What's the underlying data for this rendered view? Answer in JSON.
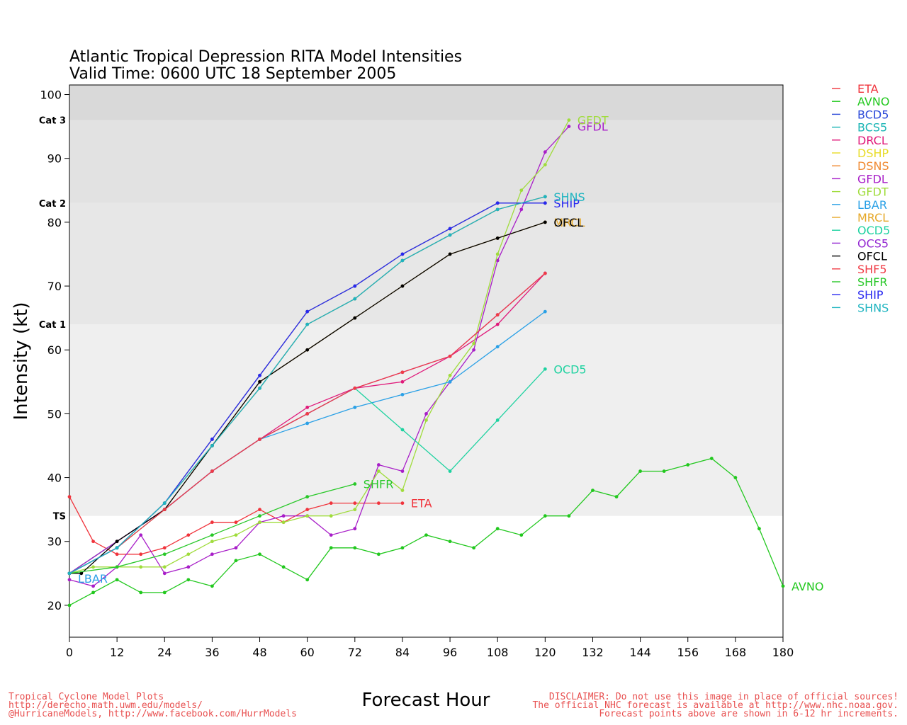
{
  "title_line1": "Atlantic Tropical Depression RITA Model Intensities",
  "title_line2": "Valid Time: 0600 UTC 18 September 2005",
  "footer": {
    "left": [
      "Tropical Cyclone Model Plots",
      "http://derecho.math.uwm.edu/models/",
      "@HurricaneModels, http://www.facebook.com/HurrModels"
    ],
    "right": [
      "DISCLAIMER: Do not use this image in place of official sources!",
      "The official NHC forecast is available at http://www.nhc.noaa.gov.",
      "Forecast points above are shown in 6-12 hr increments."
    ]
  },
  "chart_data": {
    "type": "line",
    "xlabel": "Forecast Hour",
    "ylabel": "Intensity (kt)",
    "xlim": [
      0,
      180
    ],
    "ylim": [
      15,
      101.5
    ],
    "xticks": [
      0,
      12,
      24,
      36,
      48,
      60,
      72,
      84,
      96,
      108,
      120,
      132,
      144,
      156,
      168,
      180
    ],
    "yticks": [
      20,
      30,
      40,
      50,
      60,
      70,
      80,
      90,
      100
    ],
    "categories": [
      {
        "label": "TS",
        "value": 34,
        "color": "#efefef"
      },
      {
        "label": "Cat 1",
        "value": 64,
        "color": "#e7e7e7"
      },
      {
        "label": "Cat 2",
        "value": 83,
        "color": "#e2e2e2"
      },
      {
        "label": "Cat 3",
        "value": 96,
        "color": "#d9d9d9"
      }
    ],
    "legend_position": "right",
    "series": [
      {
        "name": "ETA",
        "color": "#f0343c",
        "end_label": "ETA",
        "points": [
          [
            0,
            37
          ],
          [
            6,
            30
          ],
          [
            12,
            28
          ],
          [
            18,
            28
          ],
          [
            24,
            29
          ],
          [
            30,
            31
          ],
          [
            36,
            33
          ],
          [
            42,
            33
          ],
          [
            48,
            35
          ],
          [
            54,
            33
          ],
          [
            60,
            35
          ],
          [
            66,
            36
          ],
          [
            72,
            36
          ],
          [
            78,
            36
          ],
          [
            84,
            36
          ]
        ]
      },
      {
        "name": "AVNO",
        "color": "#22c81e",
        "end_label": "AVNO",
        "points": [
          [
            0,
            20
          ],
          [
            6,
            22
          ],
          [
            12,
            24
          ],
          [
            18,
            22
          ],
          [
            24,
            22
          ],
          [
            30,
            24
          ],
          [
            36,
            23
          ],
          [
            42,
            27
          ],
          [
            48,
            28
          ],
          [
            54,
            26
          ],
          [
            60,
            24
          ],
          [
            66,
            29
          ],
          [
            72,
            29
          ],
          [
            78,
            28
          ],
          [
            84,
            29
          ],
          [
            90,
            31
          ],
          [
            96,
            30
          ],
          [
            102,
            29
          ],
          [
            108,
            32
          ],
          [
            114,
            31
          ],
          [
            120,
            34
          ],
          [
            126,
            34
          ],
          [
            132,
            38
          ],
          [
            138,
            37
          ],
          [
            144,
            41
          ],
          [
            150,
            41
          ],
          [
            156,
            42
          ],
          [
            162,
            43
          ],
          [
            168,
            40
          ],
          [
            174,
            32
          ],
          [
            180,
            23
          ]
        ]
      },
      {
        "name": "BCD5",
        "color": "#2a48d8",
        "end_label": "",
        "points": [
          [
            0,
            25
          ],
          [
            12,
            29
          ],
          [
            24,
            36
          ],
          [
            36,
            46
          ],
          [
            48,
            56
          ],
          [
            60,
            66
          ],
          [
            72,
            70
          ],
          [
            84,
            75
          ],
          [
            96,
            79
          ],
          [
            108,
            83
          ],
          [
            120,
            83
          ]
        ]
      },
      {
        "name": "BCS5",
        "color": "#18b4b4",
        "end_label": "",
        "points": [
          [
            0,
            25
          ],
          [
            12,
            29
          ],
          [
            24,
            36
          ],
          [
            36,
            45
          ],
          [
            48,
            54
          ],
          [
            60,
            64
          ],
          [
            72,
            68
          ],
          [
            84,
            74
          ],
          [
            96,
            78
          ],
          [
            108,
            82
          ],
          [
            120,
            84
          ]
        ]
      },
      {
        "name": "DRCL",
        "color": "#e0197a",
        "end_label": "",
        "points": [
          [
            0,
            25
          ],
          [
            12,
            30
          ],
          [
            24,
            35
          ],
          [
            36,
            41
          ],
          [
            48,
            46
          ],
          [
            60,
            51
          ],
          [
            72,
            54
          ],
          [
            84,
            55
          ],
          [
            96,
            59
          ],
          [
            108,
            64
          ],
          [
            120,
            72
          ]
        ]
      },
      {
        "name": "DSHP",
        "color": "#e8dc28",
        "end_label": "",
        "points": [
          [
            0,
            25
          ],
          [
            12,
            29
          ],
          [
            24,
            36
          ],
          [
            36,
            46
          ],
          [
            48,
            56
          ],
          [
            60,
            66
          ],
          [
            72,
            70
          ],
          [
            84,
            75
          ],
          [
            96,
            79
          ],
          [
            108,
            83
          ],
          [
            120,
            83
          ]
        ]
      },
      {
        "name": "DSNS",
        "color": "#f08a32",
        "end_label": "",
        "points": [
          [
            0,
            25
          ],
          [
            12,
            29
          ],
          [
            24,
            36
          ],
          [
            36,
            45
          ],
          [
            48,
            54
          ],
          [
            60,
            64
          ],
          [
            72,
            68
          ],
          [
            84,
            74
          ],
          [
            96,
            78
          ],
          [
            108,
            82
          ],
          [
            120,
            84
          ]
        ]
      },
      {
        "name": "GFDL",
        "color": "#a81ec8",
        "end_label": "GFDL",
        "points": [
          [
            0,
            24
          ],
          [
            6,
            23
          ],
          [
            12,
            26
          ],
          [
            18,
            31
          ],
          [
            24,
            25
          ],
          [
            30,
            26
          ],
          [
            36,
            28
          ],
          [
            42,
            29
          ],
          [
            48,
            33
          ],
          [
            54,
            34
          ],
          [
            60,
            34
          ],
          [
            66,
            31
          ],
          [
            72,
            32
          ],
          [
            78,
            42
          ],
          [
            84,
            41
          ],
          [
            90,
            50
          ],
          [
            96,
            55
          ],
          [
            102,
            60
          ],
          [
            108,
            74
          ],
          [
            114,
            82
          ],
          [
            120,
            91
          ],
          [
            126,
            95
          ]
        ]
      },
      {
        "name": "GFDT",
        "color": "#a0dc3c",
        "end_label": "GFDT",
        "points": [
          [
            0,
            25
          ],
          [
            6,
            26
          ],
          [
            12,
            26
          ],
          [
            18,
            26
          ],
          [
            24,
            26
          ],
          [
            30,
            28
          ],
          [
            36,
            30
          ],
          [
            42,
            31
          ],
          [
            48,
            33
          ],
          [
            54,
            33
          ],
          [
            60,
            34
          ],
          [
            66,
            34
          ],
          [
            72,
            35
          ],
          [
            78,
            41
          ],
          [
            84,
            38
          ],
          [
            90,
            49
          ],
          [
            96,
            56
          ],
          [
            102,
            61
          ],
          [
            108,
            75
          ],
          [
            114,
            85
          ],
          [
            120,
            89
          ],
          [
            126,
            96
          ]
        ]
      },
      {
        "name": "LBAR",
        "color": "#2aa0e6",
        "end_label": "LBAR",
        "points": [
          [
            0,
            25
          ],
          [
            12,
            30
          ],
          [
            24,
            35
          ],
          [
            36,
            41
          ],
          [
            48,
            46
          ],
          [
            60,
            48.5
          ],
          [
            72,
            51
          ],
          [
            84,
            53
          ],
          [
            96,
            55
          ],
          [
            108,
            60.5
          ],
          [
            120,
            66
          ]
        ]
      },
      {
        "name": "MRCL",
        "color": "#e6a828",
        "end_label": "MRCL",
        "points": [
          [
            0,
            25
          ],
          [
            12,
            30
          ],
          [
            24,
            35
          ],
          [
            36,
            45
          ],
          [
            48,
            55
          ],
          [
            60,
            60
          ],
          [
            72,
            65
          ],
          [
            84,
            70
          ],
          [
            96,
            75
          ],
          [
            108,
            77.5
          ],
          [
            120,
            80
          ]
        ]
      },
      {
        "name": "OCD5",
        "color": "#1ed2a0",
        "end_label": "OCD5",
        "points": [
          [
            0,
            25
          ],
          [
            12,
            29
          ],
          [
            24,
            35
          ],
          [
            36,
            41
          ],
          [
            48,
            46
          ],
          [
            60,
            50
          ],
          [
            72,
            54
          ],
          [
            84,
            47.5
          ],
          [
            96,
            41
          ],
          [
            108,
            49
          ],
          [
            120,
            57
          ]
        ]
      },
      {
        "name": "OCS5",
        "color": "#9428d2",
        "end_label": "",
        "points": [
          [
            0,
            25
          ],
          [
            12,
            30
          ],
          [
            24,
            35
          ],
          [
            36,
            41
          ],
          [
            48,
            46
          ],
          [
            60,
            50
          ],
          [
            72,
            54
          ],
          [
            84,
            56.5
          ],
          [
            96,
            59
          ],
          [
            108,
            65.5
          ],
          [
            120,
            72
          ]
        ]
      },
      {
        "name": "OFCL",
        "color": "#000000",
        "end_label": "OFCL",
        "points": [
          [
            0,
            25
          ],
          [
            3,
            25
          ],
          [
            12,
            30
          ],
          [
            24,
            35
          ],
          [
            36,
            45
          ],
          [
            48,
            55
          ],
          [
            60,
            60
          ],
          [
            72,
            65
          ],
          [
            84,
            70
          ],
          [
            96,
            75
          ],
          [
            108,
            77.5
          ],
          [
            120,
            80
          ]
        ]
      },
      {
        "name": "SHF5",
        "color": "#f03c46",
        "end_label": "",
        "points": [
          [
            0,
            25
          ],
          [
            12,
            29
          ],
          [
            24,
            35
          ],
          [
            36,
            41
          ],
          [
            48,
            46
          ],
          [
            60,
            50
          ],
          [
            72,
            54
          ],
          [
            84,
            56.5
          ],
          [
            96,
            59
          ],
          [
            108,
            65.5
          ],
          [
            120,
            72
          ]
        ]
      },
      {
        "name": "SHFR",
        "color": "#28c828",
        "end_label": "SHFR",
        "points": [
          [
            0,
            25
          ],
          [
            12,
            26
          ],
          [
            24,
            28
          ],
          [
            36,
            31
          ],
          [
            48,
            34
          ],
          [
            60,
            37
          ],
          [
            72,
            39
          ]
        ]
      },
      {
        "name": "SHIP",
        "color": "#2828f0",
        "end_label": "SHIP",
        "points": [
          [
            0,
            25
          ],
          [
            12,
            29
          ],
          [
            24,
            36
          ],
          [
            36,
            46
          ],
          [
            48,
            56
          ],
          [
            60,
            66
          ],
          [
            72,
            70
          ],
          [
            84,
            75
          ],
          [
            96,
            79
          ],
          [
            108,
            83
          ],
          [
            120,
            83
          ]
        ]
      },
      {
        "name": "SHNS",
        "color": "#1eb4c0",
        "end_label": "SHNS",
        "points": [
          [
            0,
            25
          ],
          [
            12,
            29
          ],
          [
            24,
            36
          ],
          [
            36,
            45
          ],
          [
            48,
            54
          ],
          [
            60,
            64
          ],
          [
            72,
            68
          ],
          [
            84,
            74
          ],
          [
            96,
            78
          ],
          [
            108,
            82
          ],
          [
            120,
            84
          ]
        ]
      }
    ]
  }
}
